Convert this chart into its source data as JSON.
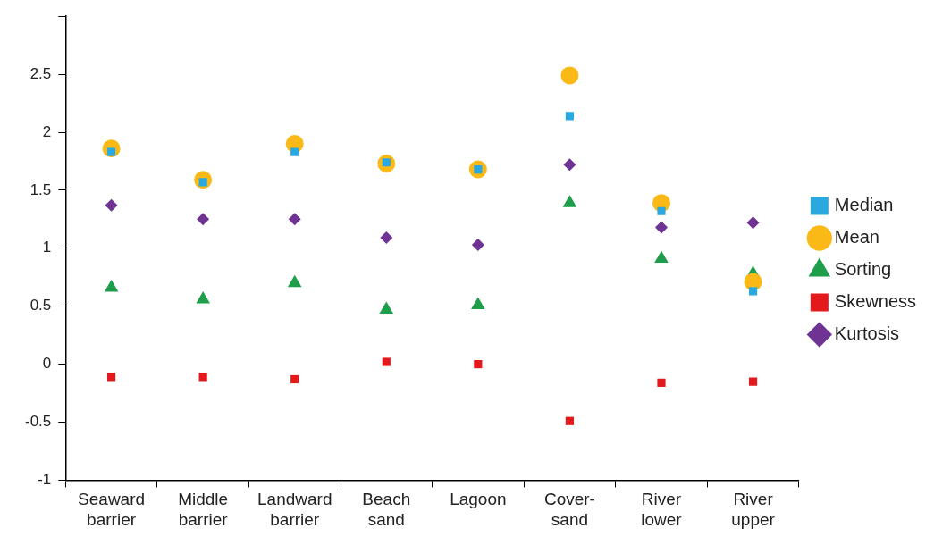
{
  "chart_data": {
    "type": "scatter",
    "categories": [
      "Seaward barrier",
      "Middle barrier",
      "Landward barrier",
      "Beach sand",
      "Lagoon",
      "Cover-sand",
      "River lower",
      "River upper"
    ],
    "series": [
      {
        "name": "Median",
        "color": "#29a9e0",
        "marker": "square",
        "values": [
          1.83,
          1.57,
          1.83,
          1.74,
          1.68,
          2.14,
          1.32,
          0.63
        ]
      },
      {
        "name": "Mean",
        "color": "#fbb917",
        "marker": "circle",
        "values": [
          1.86,
          1.59,
          1.9,
          1.73,
          1.68,
          2.49,
          1.39,
          0.71
        ]
      },
      {
        "name": "Sorting",
        "color": "#1e9e4a",
        "marker": "triangle",
        "values": [
          0.66,
          0.56,
          0.7,
          0.47,
          0.51,
          1.39,
          0.91,
          0.78
        ]
      },
      {
        "name": "Skewness",
        "color": "#e3191c",
        "marker": "square",
        "values": [
          -0.11,
          -0.11,
          -0.13,
          0.02,
          0,
          -0.49,
          -0.16,
          -0.15
        ]
      },
      {
        "name": "Kurtosis",
        "color": "#6f3394",
        "marker": "diamond",
        "values": [
          1.37,
          1.25,
          1.25,
          1.09,
          1.03,
          1.72,
          1.18,
          1.22
        ]
      }
    ],
    "ylim": [
      -1,
      3
    ],
    "yticks": [
      -1,
      -0.5,
      0,
      0.5,
      1,
      1.5,
      2,
      2.5,
      {
        "value": 3,
        "label": null
      }
    ],
    "grid": false,
    "legend": "right"
  }
}
